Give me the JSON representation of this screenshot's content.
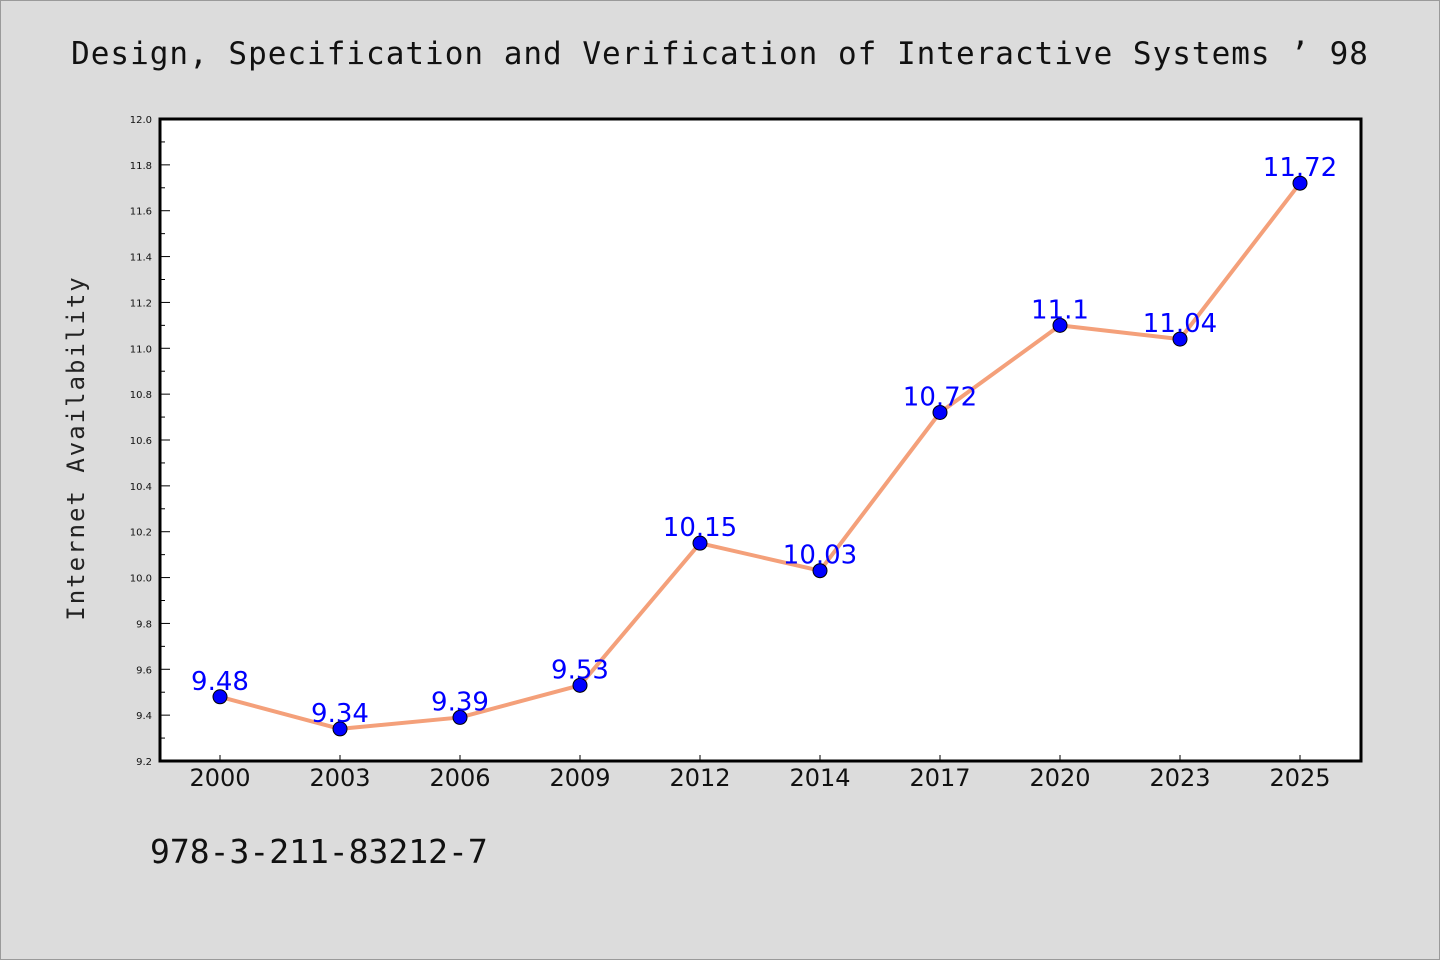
{
  "title": "Design, Specification and Verification of Interactive Systems ’ 98",
  "footer": "978-3-211-83212-7",
  "colors": {
    "background": "#dcdcdc",
    "plot_background": "#ffffff",
    "line": "#f4a07a",
    "marker": "#0000ff",
    "label": "#0000ff"
  },
  "chart_data": {
    "type": "line",
    "title": "Design, Specification and Verification of Interactive Systems ’ 98",
    "xlabel": "",
    "ylabel": "Internet Availability",
    "categories": [
      "2000",
      "2003",
      "2006",
      "2009",
      "2012",
      "2014",
      "2017",
      "2020",
      "2023",
      "2025"
    ],
    "series": [
      {
        "values": [
          9.48,
          9.34,
          9.39,
          9.53,
          10.15,
          10.03,
          10.72,
          11.1,
          11.04,
          11.72
        ],
        "data_labels": [
          "9.48",
          "9.34",
          "9.39",
          "9.53",
          "10.15",
          "10.03",
          "10.72",
          "11.1",
          "11.04",
          "11.72"
        ]
      }
    ],
    "ylim": [
      9.2,
      12.0
    ],
    "yticks": [
      "9.2",
      "9.4",
      "9.6",
      "9.8",
      "10.0",
      "10.2",
      "10.4",
      "10.6",
      "10.8",
      "11.0",
      "11.2",
      "11.4",
      "11.6",
      "11.8",
      "12.0"
    ],
    "grid": false,
    "legend": "none"
  }
}
